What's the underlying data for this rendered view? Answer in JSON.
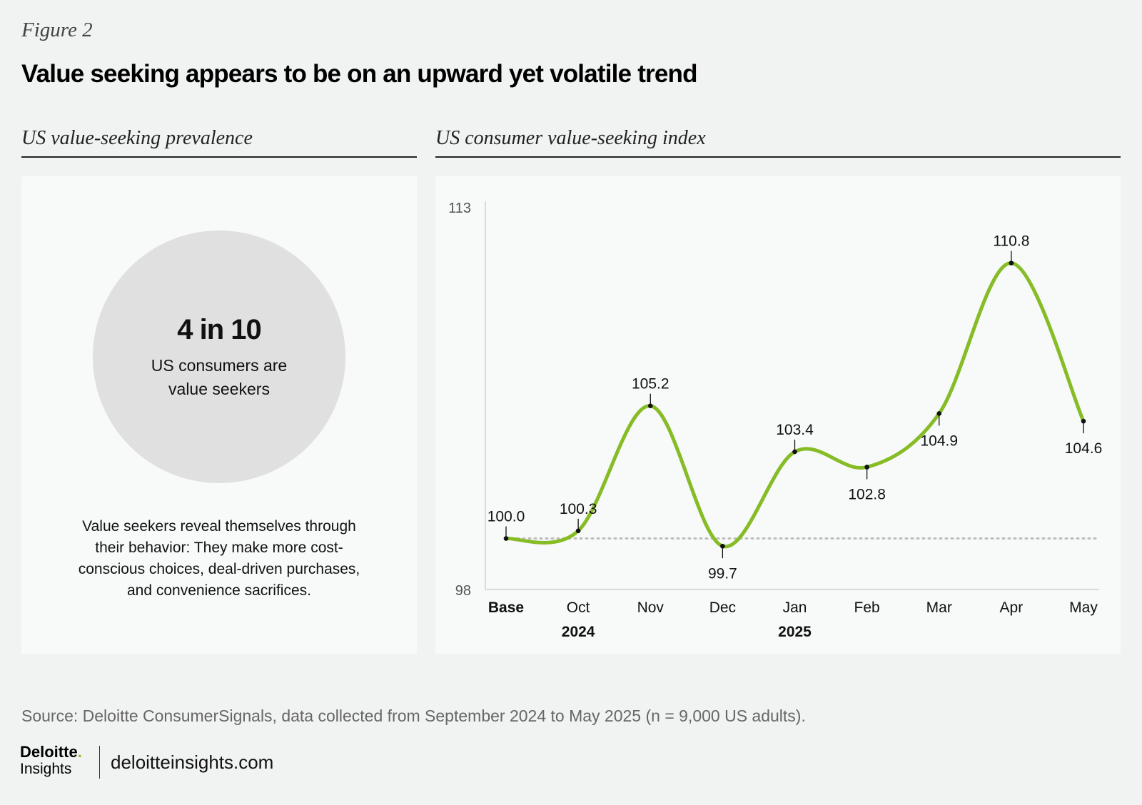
{
  "figure": {
    "label": "Figure 2",
    "title": "Value seeking appears to be on an upward yet volatile trend"
  },
  "left_panel": {
    "title": "US value-seeking prevalence",
    "stat_main": "4 in 10",
    "stat_sub": "US consumers are value seekers",
    "description": "Value seekers reveal themselves through their behavior: They make more cost-conscious choices, deal-driven purchases, and convenience sacrifices."
  },
  "right_panel": {
    "title": "US consumer value-seeking index"
  },
  "colors": {
    "line": "#86bc25",
    "baseline": "#bdbdbd",
    "text": "#111111"
  },
  "chart_data": {
    "type": "line",
    "title": "US consumer value-seeking index",
    "categories": [
      "Base",
      "Oct",
      "Nov",
      "Dec",
      "Jan",
      "Feb",
      "Mar",
      "Apr",
      "May"
    ],
    "values": [
      100.0,
      100.3,
      105.2,
      99.7,
      103.4,
      102.8,
      104.9,
      110.8,
      104.6
    ],
    "data_labels": [
      "100.0",
      "100.3",
      "105.2",
      "99.7",
      "103.4",
      "102.8",
      "104.9",
      "110.8",
      "104.6"
    ],
    "year_labels": [
      {
        "category": "Oct",
        "label": "2024"
      },
      {
        "category": "Jan",
        "label": "2025"
      }
    ],
    "ylim": [
      98,
      113
    ],
    "yticks": [
      "98",
      "113"
    ],
    "reference_line": 100,
    "xlabel": "",
    "ylabel": "",
    "grid": false
  },
  "footer": {
    "source": "Source: Deloitte ConsumerSignals, data collected from September 2024 to May 2025 (n = 9,000 US adults).",
    "logo_brand": "Deloitte",
    "logo_dot": ".",
    "logo_sub": "Insights",
    "site": "deloitteinsights.com"
  }
}
